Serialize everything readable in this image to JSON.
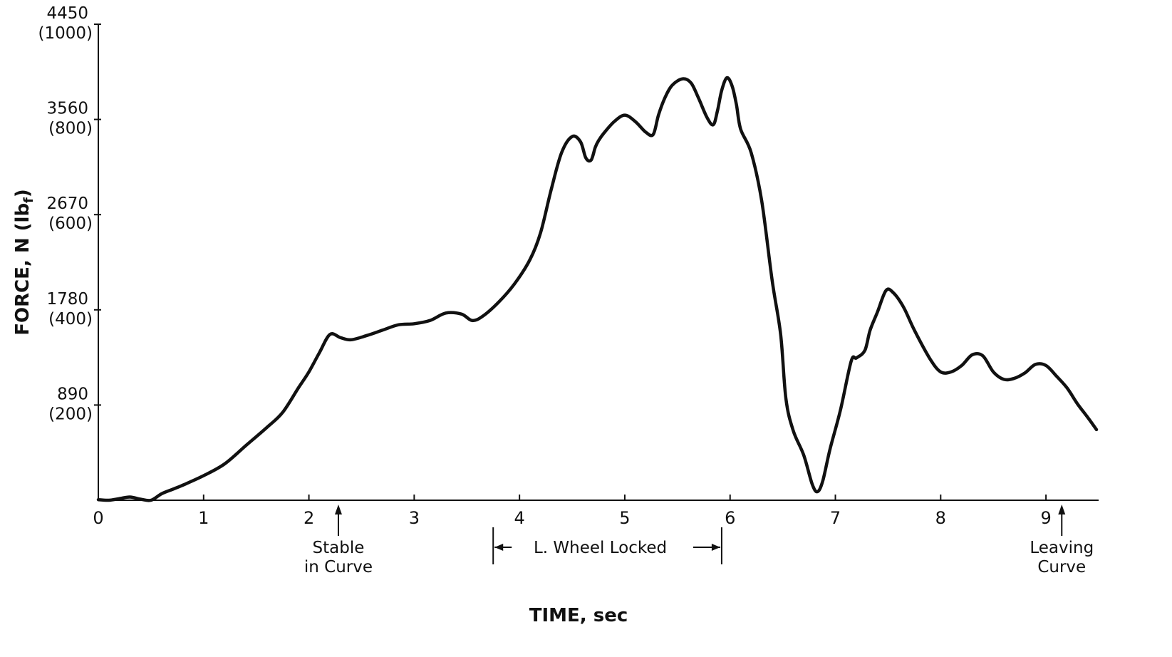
{
  "chart_data": {
    "type": "line",
    "title": "",
    "xlabel": "TIME, sec",
    "ylabel": "FORCE, N (lb",
    "ylabel_sub": "f",
    "ylabel_close": ")",
    "xlim": [
      0,
      9.5
    ],
    "ylim": [
      0,
      4450
    ],
    "grid": false,
    "x_ticks": [
      {
        "value": 0,
        "label": "0"
      },
      {
        "value": 1,
        "label": "1"
      },
      {
        "value": 2,
        "label": "2"
      },
      {
        "value": 3,
        "label": "3"
      },
      {
        "value": 4,
        "label": "4"
      },
      {
        "value": 5,
        "label": "5"
      },
      {
        "value": 6,
        "label": "6"
      },
      {
        "value": 7,
        "label": "7"
      },
      {
        "value": 8,
        "label": "8"
      },
      {
        "value": 9,
        "label": "9"
      }
    ],
    "y_ticks": [
      {
        "value": 890,
        "label": "890",
        "label2": "(200)"
      },
      {
        "value": 1780,
        "label": "1780",
        "label2": "(400)"
      },
      {
        "value": 2670,
        "label": "2670",
        "label2": "(600)"
      },
      {
        "value": 3560,
        "label": "3560",
        "label2": "(800)"
      },
      {
        "value": 4450,
        "label": "4450",
        "label2": "(1000)"
      }
    ],
    "series": [
      {
        "x": [
          0,
          0.1,
          0.2,
          0.3,
          0.4,
          0.5,
          0.6,
          0.7,
          0.8,
          1.0,
          1.2,
          1.4,
          1.6,
          1.75,
          1.9,
          2.0,
          2.1,
          2.2,
          2.3,
          2.4,
          2.55,
          2.7,
          2.85,
          3.0,
          3.15,
          3.3,
          3.45,
          3.55,
          3.65,
          3.8,
          3.95,
          4.1,
          4.2,
          4.3,
          4.4,
          4.5,
          4.58,
          4.63,
          4.68,
          4.72,
          4.75,
          4.8,
          4.9,
          5.0,
          5.1,
          5.2,
          5.27,
          5.32,
          5.38,
          5.45,
          5.55,
          5.63,
          5.7,
          5.78,
          5.84,
          5.88,
          5.92,
          5.97,
          6.02,
          6.06,
          6.1,
          6.2,
          6.3,
          6.4,
          6.48,
          6.53,
          6.6,
          6.7,
          6.78,
          6.83,
          6.88,
          6.95,
          7.05,
          7.15,
          7.2,
          7.28,
          7.33,
          7.4,
          7.48,
          7.55,
          7.65,
          7.75,
          7.9,
          8.0,
          8.1,
          8.2,
          8.3,
          8.4,
          8.5,
          8.6,
          8.7,
          8.8,
          8.9,
          9.0,
          9.1,
          9.2,
          9.3,
          9.4,
          9.48
        ],
        "y": [
          5,
          0,
          15,
          30,
          10,
          0,
          60,
          100,
          140,
          230,
          340,
          510,
          680,
          820,
          1050,
          1200,
          1380,
          1550,
          1520,
          1500,
          1540,
          1590,
          1640,
          1650,
          1680,
          1750,
          1740,
          1680,
          1720,
          1850,
          2020,
          2250,
          2500,
          2900,
          3250,
          3400,
          3350,
          3200,
          3180,
          3300,
          3360,
          3430,
          3540,
          3600,
          3540,
          3440,
          3420,
          3600,
          3760,
          3880,
          3940,
          3900,
          3760,
          3580,
          3510,
          3640,
          3830,
          3950,
          3870,
          3700,
          3470,
          3250,
          2800,
          2050,
          1550,
          950,
          650,
          420,
          150,
          80,
          180,
          480,
          850,
          1300,
          1330,
          1400,
          1590,
          1760,
          1960,
          1940,
          1800,
          1590,
          1320,
          1200,
          1200,
          1260,
          1360,
          1350,
          1200,
          1130,
          1140,
          1190,
          1270,
          1260,
          1160,
          1050,
          900,
          770,
          660
        ]
      }
    ],
    "annotations": [
      {
        "x": 2.28,
        "lines": [
          "Stable",
          "in Curve"
        ],
        "kind": "arrow"
      },
      {
        "x_start": 3.75,
        "x_end": 5.92,
        "text": "L. Wheel Locked",
        "kind": "span"
      },
      {
        "x": 9.15,
        "lines": [
          "Leaving",
          "Curve"
        ],
        "kind": "arrow"
      }
    ]
  }
}
